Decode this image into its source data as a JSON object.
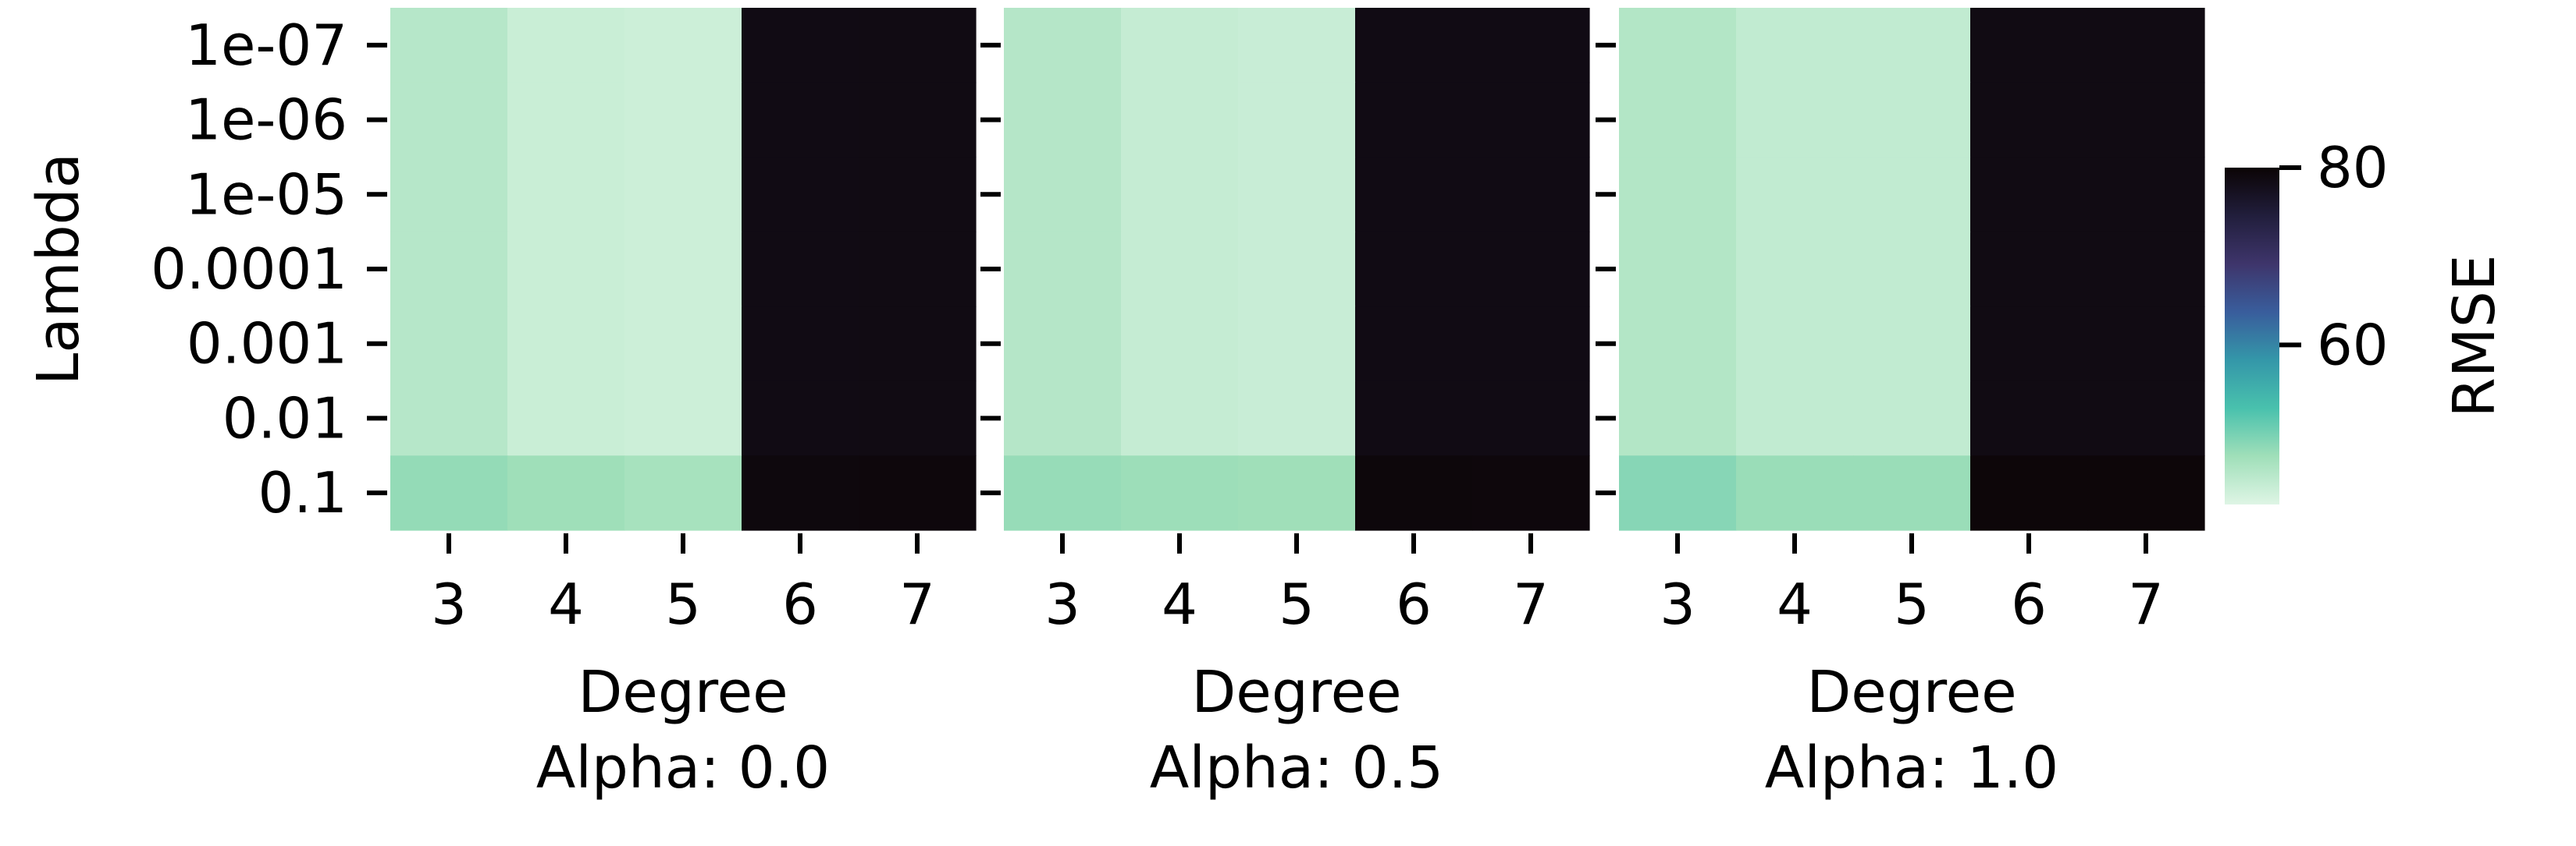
{
  "chart_data": {
    "type": "heatmap",
    "ylabel": "Lambda",
    "xlabel": "Degree",
    "y_categories": [
      "1e-07",
      "1e-06",
      "1e-05",
      "0.0001",
      "0.001",
      "0.01",
      "0.1"
    ],
    "x_categories": [
      "3",
      "4",
      "5",
      "6",
      "7"
    ],
    "colorbar": {
      "label": "RMSE",
      "ticks": [
        "60",
        "80"
      ],
      "range": [
        42,
        80
      ],
      "colormap": "mako_r",
      "colors": [
        "#def5e5",
        "#a0dfb9",
        "#49c1ad",
        "#3497a9",
        "#395d9c",
        "#3e356b",
        "#211e3c",
        "#0b0405"
      ]
    },
    "panels": [
      {
        "title": "Alpha: 0.0",
        "values": [
          [
            45.5,
            43.8,
            43.6,
            78.5,
            78.6
          ],
          [
            45.5,
            43.8,
            43.6,
            78.5,
            78.6
          ],
          [
            45.5,
            43.8,
            43.6,
            78.5,
            78.6
          ],
          [
            45.5,
            43.8,
            43.6,
            78.5,
            78.6
          ],
          [
            45.5,
            43.8,
            43.6,
            78.5,
            78.6
          ],
          [
            45.5,
            43.8,
            43.6,
            78.5,
            78.6
          ],
          [
            48.2,
            47.5,
            46.8,
            79.2,
            79.3
          ]
        ]
      },
      {
        "title": "Alpha: 0.5",
        "values": [
          [
            45.6,
            44.2,
            43.9,
            78.5,
            78.5
          ],
          [
            45.6,
            44.2,
            43.9,
            78.5,
            78.5
          ],
          [
            45.6,
            44.2,
            43.9,
            78.5,
            78.5
          ],
          [
            45.6,
            44.2,
            43.9,
            78.5,
            78.5
          ],
          [
            45.6,
            44.2,
            43.9,
            78.5,
            78.5
          ],
          [
            45.6,
            44.2,
            43.9,
            78.5,
            78.5
          ],
          [
            48.0,
            47.6,
            47.4,
            79.4,
            79.3
          ]
        ]
      },
      {
        "title": "Alpha: 1.0",
        "values": [
          [
            45.8,
            44.5,
            44.5,
            78.6,
            78.6
          ],
          [
            45.8,
            44.5,
            44.5,
            78.6,
            78.6
          ],
          [
            45.8,
            44.5,
            44.5,
            78.6,
            78.6
          ],
          [
            45.8,
            44.5,
            44.5,
            78.6,
            78.6
          ],
          [
            45.8,
            44.5,
            44.5,
            78.6,
            78.6
          ],
          [
            45.8,
            44.5,
            44.5,
            78.6,
            78.6
          ],
          [
            49.0,
            47.8,
            47.8,
            79.6,
            79.6
          ]
        ]
      }
    ]
  }
}
